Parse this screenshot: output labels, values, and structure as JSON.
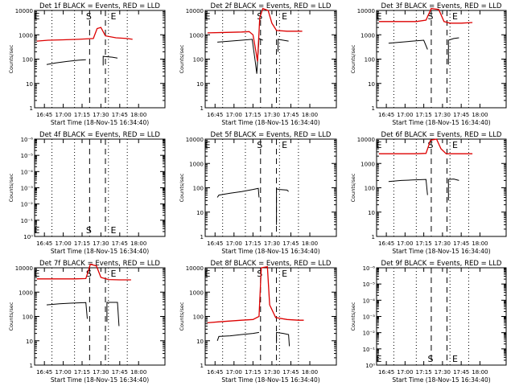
{
  "chart_data": [
    {
      "type": "line",
      "title": "Det 1f BLACK = Events, RED = LLD",
      "xlabel": "Start Time (18-Nov-15 16:34:40)",
      "ylabel": "Counts/sec",
      "yscale": "log",
      "ylim": [
        1,
        10000
      ],
      "yticks": [
        "1",
        "10",
        "100",
        "1000",
        "10000"
      ],
      "xticks": [
        "16:45",
        "17:00",
        "17:15",
        "17:30",
        "17:45",
        "18:00"
      ],
      "markers": [
        "S",
        "E"
      ],
      "series": [
        {
          "color": "#000000",
          "segments": [
            [
              [
                16.78,
                60
              ],
              [
                16.9,
                70
              ],
              [
                17.05,
                80
              ],
              [
                17.2,
                90
              ],
              [
                17.3,
                95
              ]
            ],
            [
              [
                17.53,
                55
              ],
              [
                17.53,
                130
              ],
              [
                17.65,
                120
              ],
              [
                17.72,
                110
              ]
            ]
          ]
        },
        {
          "color": "#dd0000",
          "segments": [
            [
              [
                16.65,
                550
              ],
              [
                16.8,
                600
              ],
              [
                17.0,
                620
              ],
              [
                17.2,
                650
              ],
              [
                17.4,
                700
              ],
              [
                17.45,
                1800
              ],
              [
                17.5,
                2000
              ],
              [
                17.56,
                900
              ],
              [
                17.7,
                750
              ],
              [
                17.85,
                700
              ],
              [
                17.92,
                650
              ]
            ]
          ]
        }
      ]
    },
    {
      "type": "line",
      "title": "Det 2f BLACK = Events, RED = LLD",
      "xlabel": "Start Time (18-Nov-15 16:34:40)",
      "ylabel": "Counts/sec",
      "yscale": "log",
      "ylim": [
        1,
        10000
      ],
      "yticks": [
        "1",
        "10",
        "100",
        "1000",
        "10000"
      ],
      "xticks": [
        "16:45",
        "17:00",
        "17:15",
        "17:30",
        "17:45",
        "18:00"
      ],
      "markers": [
        "S",
        "E"
      ],
      "series": [
        {
          "color": "#000000",
          "segments": [
            [
              [
                16.78,
                500
              ],
              [
                16.95,
                550
              ],
              [
                17.1,
                600
              ],
              [
                17.24,
                650
              ],
              [
                17.28,
                80
              ],
              [
                17.3,
                25
              ],
              [
                17.33,
                700
              ],
              [
                17.38,
                600
              ]
            ],
            [
              [
                17.58,
                200
              ],
              [
                17.58,
                650
              ],
              [
                17.65,
                600
              ],
              [
                17.72,
                550
              ]
            ]
          ]
        },
        {
          "color": "#dd0000",
          "segments": [
            [
              [
                16.65,
                1200
              ],
              [
                16.9,
                1250
              ],
              [
                17.1,
                1300
              ],
              [
                17.2,
                1350
              ],
              [
                17.25,
                1000
              ],
              [
                17.29,
                200
              ],
              [
                17.31,
                80
              ],
              [
                17.34,
                5000
              ],
              [
                17.38,
                12000
              ],
              [
                17.45,
                10000
              ],
              [
                17.5,
                3000
              ],
              [
                17.56,
                1500
              ],
              [
                17.7,
                1400
              ],
              [
                17.9,
                1400
              ]
            ]
          ]
        }
      ]
    },
    {
      "type": "line",
      "title": "Det 3f BLACK = Events, RED = LLD",
      "xlabel": "Start Time (18-Nov-15 16:34:40)",
      "ylabel": "Counts/sec",
      "yscale": "log",
      "ylim": [
        1,
        10000
      ],
      "yticks": [
        "1",
        "10",
        "100",
        "1000",
        "10000"
      ],
      "xticks": [
        "16:45",
        "17:00",
        "17:15",
        "17:30",
        "17:45",
        "18:00"
      ],
      "markers": [
        "S",
        "E"
      ],
      "series": [
        {
          "color": "#000000",
          "segments": [
            [
              [
                16.78,
                450
              ],
              [
                16.95,
                500
              ],
              [
                17.1,
                550
              ],
              [
                17.25,
                600
              ],
              [
                17.3,
                250
              ]
            ],
            [
              [
                17.58,
                60
              ],
              [
                17.58,
                600
              ],
              [
                17.65,
                700
              ],
              [
                17.72,
                750
              ]
            ]
          ]
        },
        {
          "color": "#dd0000",
          "segments": [
            [
              [
                16.65,
                3500
              ],
              [
                16.9,
                3500
              ],
              [
                17.15,
                3500
              ],
              [
                17.28,
                4000
              ],
              [
                17.35,
                12000
              ],
              [
                17.45,
                11000
              ],
              [
                17.52,
                3500
              ],
              [
                17.6,
                3000
              ],
              [
                17.75,
                3000
              ],
              [
                17.9,
                3200
              ]
            ]
          ]
        }
      ]
    },
    {
      "type": "line",
      "title": "Det 4f BLACK = Events, RED = LLD",
      "xlabel": "Start Time (18-Nov-15 16:34:40)",
      "ylabel": "Counts/sec",
      "yscale": "log",
      "ylim": [
        1,
        1e-06
      ],
      "yticks": [
        "10⁰",
        "10⁻¹",
        "10⁻²",
        "10⁻³",
        "10⁻⁴",
        "10⁻⁵",
        "10⁻⁶"
      ],
      "xticks": [
        "16:45",
        "17:00",
        "17:15",
        "17:30",
        "17:45",
        "18:00"
      ],
      "markers": [
        "S",
        "E"
      ],
      "series": []
    },
    {
      "type": "line",
      "title": "Det 5f BLACK = Events, RED = LLD",
      "xlabel": "Start Time (18-Nov-15 16:34:40)",
      "ylabel": "Counts/sec",
      "yscale": "log",
      "ylim": [
        1,
        10000
      ],
      "yticks": [
        "1",
        "10",
        "100",
        "1000",
        "10000"
      ],
      "xticks": [
        "16:45",
        "17:00",
        "17:15",
        "17:30",
        "17:45",
        "18:00"
      ],
      "markers": [
        "S",
        "E"
      ],
      "series": [
        {
          "color": "#000000",
          "segments": [
            [
              [
                16.78,
                40
              ],
              [
                16.8,
                50
              ],
              [
                16.95,
                60
              ],
              [
                17.1,
                70
              ],
              [
                17.25,
                85
              ],
              [
                17.32,
                95
              ],
              [
                17.33,
                40
              ]
            ],
            [
              [
                17.56,
                3
              ],
              [
                17.56,
                90
              ],
              [
                17.6,
                85
              ],
              [
                17.7,
                80
              ],
              [
                17.72,
                70
              ]
            ]
          ]
        }
      ]
    },
    {
      "type": "line",
      "title": "Det 6f BLACK = Events, RED = LLD",
      "xlabel": "Start Time (18-Nov-15 16:34:40)",
      "ylabel": "Counts/sec",
      "yscale": "log",
      "ylim": [
        1,
        10000
      ],
      "yticks": [
        "1",
        "10",
        "100",
        "1000",
        "10000"
      ],
      "xticks": [
        "16:45",
        "17:00",
        "17:15",
        "17:30",
        "17:45",
        "18:00"
      ],
      "markers": [
        "S",
        "E"
      ],
      "series": [
        {
          "color": "#000000",
          "segments": [
            [
              [
                16.78,
                180
              ],
              [
                16.95,
                200
              ],
              [
                17.1,
                210
              ],
              [
                17.28,
                220
              ],
              [
                17.3,
                50
              ]
            ],
            [
              [
                17.58,
                30
              ],
              [
                17.58,
                220
              ],
              [
                17.65,
                230
              ],
              [
                17.72,
                200
              ]
            ]
          ]
        },
        {
          "color": "#dd0000",
          "segments": [
            [
              [
                16.65,
                2500
              ],
              [
                16.9,
                2500
              ],
              [
                17.15,
                2500
              ],
              [
                17.28,
                2600
              ],
              [
                17.34,
                9000
              ],
              [
                17.42,
                10000
              ],
              [
                17.48,
                4000
              ],
              [
                17.55,
                2500
              ],
              [
                17.75,
                2500
              ],
              [
                17.9,
                2500
              ]
            ]
          ]
        }
      ]
    },
    {
      "type": "line",
      "title": "Det 7f BLACK = Events, RED = LLD",
      "xlabel": "Start Time (18-Nov-15 16:34:40)",
      "ylabel": "Counts/sec",
      "yscale": "log",
      "ylim": [
        1,
        10000
      ],
      "yticks": [
        "1",
        "10",
        "100",
        "1000",
        "10000"
      ],
      "xticks": [
        "16:45",
        "17:00",
        "17:15",
        "17:30",
        "17:45",
        "18:00"
      ],
      "markers": [
        "S",
        "E"
      ],
      "series": [
        {
          "color": "#000000",
          "segments": [
            [
              [
                16.78,
                300
              ],
              [
                16.95,
                330
              ],
              [
                17.1,
                350
              ],
              [
                17.3,
                370
              ],
              [
                17.32,
                80
              ]
            ],
            [
              [
                17.58,
                60
              ],
              [
                17.58,
                380
              ],
              [
                17.65,
                380
              ],
              [
                17.72,
                380
              ],
              [
                17.74,
                40
              ]
            ]
          ]
        },
        {
          "color": "#dd0000",
          "segments": [
            [
              [
                16.65,
                3500
              ],
              [
                16.9,
                3500
              ],
              [
                17.15,
                3500
              ],
              [
                17.3,
                3600
              ],
              [
                17.36,
                14000
              ],
              [
                17.44,
                12000
              ],
              [
                17.5,
                4000
              ],
              [
                17.6,
                3300
              ],
              [
                17.75,
                3200
              ],
              [
                17.9,
                3200
              ]
            ]
          ]
        }
      ]
    },
    {
      "type": "line",
      "title": "Det 8f BLACK = Events, RED = LLD",
      "xlabel": "Start Time (18-Nov-15 16:34:40)",
      "ylabel": "Counts/sec",
      "yscale": "log",
      "ylim": [
        1,
        10000
      ],
      "yticks": [
        "1",
        "10",
        "100",
        "1000",
        "10000"
      ],
      "xticks": [
        "16:45",
        "17:00",
        "17:15",
        "17:30",
        "17:45",
        "18:00"
      ],
      "markers": [
        "S",
        "E"
      ],
      "series": [
        {
          "color": "#000000",
          "segments": [
            [
              [
                16.78,
                10
              ],
              [
                16.8,
                15
              ],
              [
                16.95,
                16
              ],
              [
                17.1,
                18
              ],
              [
                17.25,
                20
              ],
              [
                17.33,
                22
              ]
            ],
            [
              [
                17.56,
                8
              ],
              [
                17.56,
                22
              ],
              [
                17.65,
                20
              ],
              [
                17.72,
                18
              ],
              [
                17.73,
                6
              ]
            ]
          ]
        },
        {
          "color": "#dd0000",
          "segments": [
            [
              [
                16.65,
                55
              ],
              [
                16.8,
                60
              ],
              [
                16.95,
                65
              ],
              [
                17.1,
                70
              ],
              [
                17.25,
                75
              ],
              [
                17.33,
                100
              ],
              [
                17.36,
                10000
              ],
              [
                17.44,
                11000
              ],
              [
                17.47,
                300
              ],
              [
                17.55,
                90
              ],
              [
                17.7,
                75
              ],
              [
                17.85,
                70
              ],
              [
                17.92,
                70
              ]
            ]
          ]
        }
      ]
    },
    {
      "type": "line",
      "title": "Det 9f BLACK = Events, RED = LLD",
      "xlabel": "Start Time (18-Nov-15 16:34:40)",
      "ylabel": "Counts/sec",
      "yscale": "log",
      "ylim": [
        1,
        1e-06
      ],
      "yticks": [
        "10⁰",
        "10⁻¹",
        "10⁻²",
        "10⁻³",
        "10⁻⁴",
        "10⁻⁵",
        "10⁻⁶"
      ],
      "xticks": [
        "16:45",
        "17:00",
        "17:15",
        "17:30",
        "17:45",
        "18:00"
      ],
      "markers": [
        "S",
        "E"
      ],
      "series": []
    }
  ]
}
